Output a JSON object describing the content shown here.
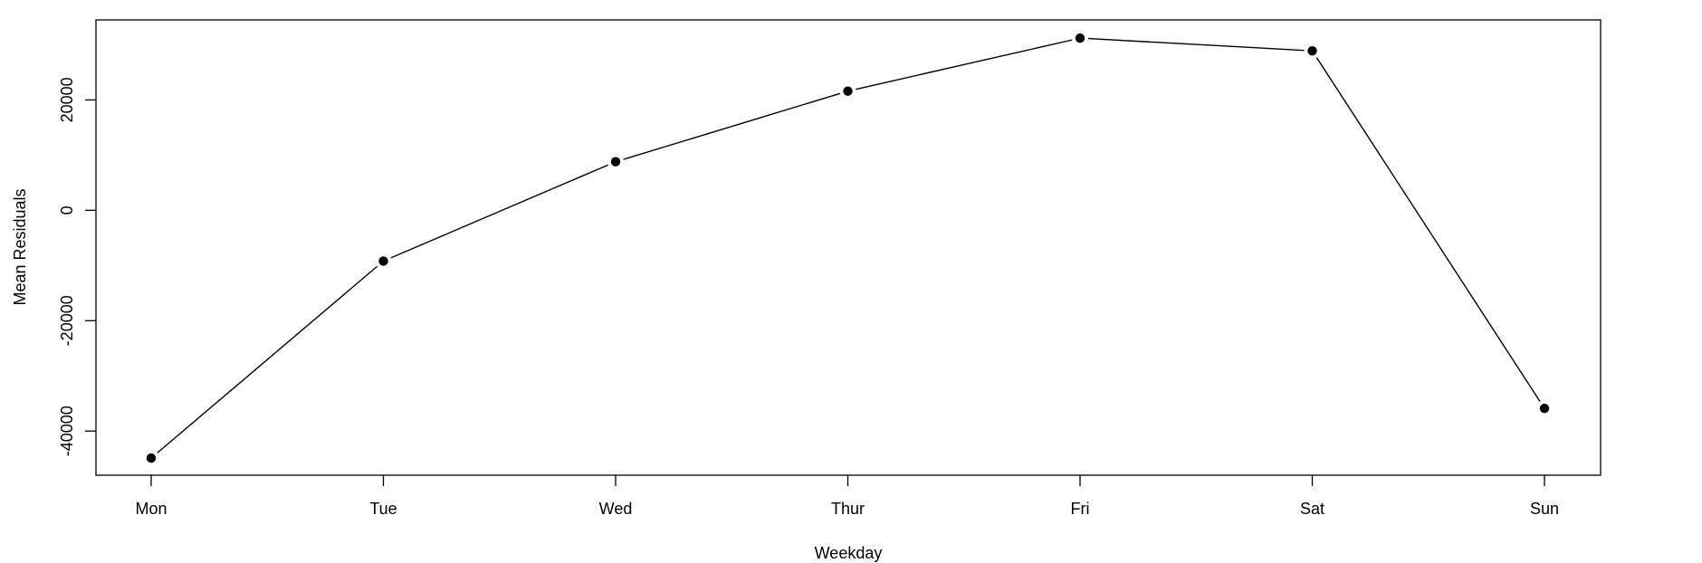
{
  "chart_data": {
    "type": "line",
    "title": "",
    "xlabel": "Weekday",
    "ylabel": "Mean Residuals",
    "categories": [
      "Mon",
      "Tue",
      "Wed",
      "Thur",
      "Fri",
      "Sat",
      "Sun"
    ],
    "series": [
      {
        "values": [
          -44900,
          -9200,
          8800,
          21600,
          31200,
          28900,
          -35900
        ]
      }
    ],
    "yticks": [
      -40000,
      -20000,
      0,
      20000
    ],
    "ytick_labels": [
      "-40000",
      "-20000",
      "0",
      "20000"
    ],
    "ylim": [
      -48000,
      34500
    ],
    "grid": false,
    "marker": "filled-circle",
    "colors": {
      "line": "#000000",
      "marker": "#000000",
      "background": "#ffffff"
    }
  }
}
